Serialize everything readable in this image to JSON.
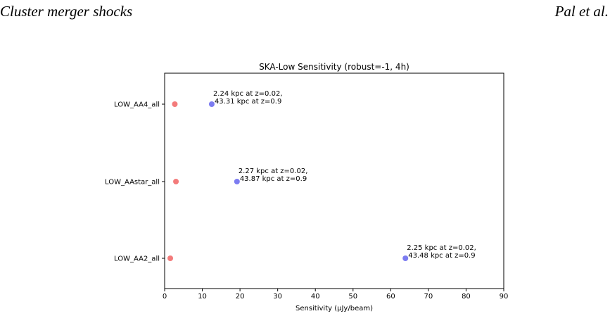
{
  "header": {
    "left_title": "Cluster merger shocks",
    "right_author": "Pal et al."
  },
  "chart_data": {
    "type": "scatter",
    "title": "SKA-Low Sensitivity (robust=-1, 4h)",
    "xlabel": "Sensitivity (µJy/beam)",
    "ylabel": "",
    "xlim": [
      0,
      90
    ],
    "xticks": [
      0,
      10,
      20,
      30,
      40,
      50,
      60,
      70,
      80,
      90
    ],
    "categories": [
      "LOW_AA4_all",
      "LOW_AAstar_all",
      "LOW_AA2_all"
    ],
    "grid": false,
    "series": [
      {
        "color": "#f26d6d",
        "values": [
          2.7,
          3.0,
          1.5
        ]
      },
      {
        "color": "#6e6ef0",
        "values": [
          12.5,
          19.2,
          63.9
        ]
      }
    ],
    "annotations": [
      {
        "category": "LOW_AA4_all",
        "line1": "2.24 kpc at z=0.02,",
        "line2": "43.31 kpc at z=0.9"
      },
      {
        "category": "LOW_AAstar_all",
        "line1": "2.27 kpc at z=0.02,",
        "line2": "43.87 kpc at z=0.9"
      },
      {
        "category": "LOW_AA2_all",
        "line1": "2.25 kpc at z=0.02,",
        "line2": "43.48 kpc at z=0.9"
      }
    ]
  }
}
